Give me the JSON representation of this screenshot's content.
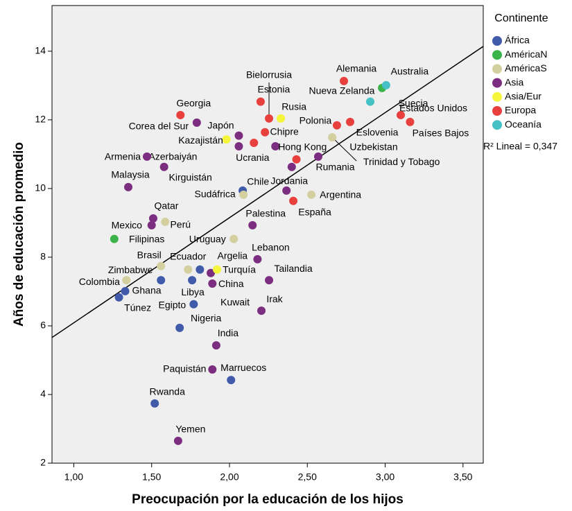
{
  "chart_data": {
    "type": "scatter",
    "xlabel": "Preocupación por la educación de los hijos",
    "ylabel": "Años de educación promedio",
    "xlim": [
      0.86,
      3.63
    ],
    "ylim": [
      2,
      15.33
    ],
    "xticks": [
      {
        "value": 1,
        "label": "1,00"
      },
      {
        "value": 1.5,
        "label": "1,50"
      },
      {
        "value": 2,
        "label": "2,00"
      },
      {
        "value": 2.5,
        "label": "2,50"
      },
      {
        "value": 3,
        "label": "3,00"
      },
      {
        "value": 3.5,
        "label": "3,50"
      }
    ],
    "yticks": [
      2,
      4,
      6,
      8,
      10,
      12,
      14
    ],
    "legend_title": "Continente",
    "legend": "right",
    "annotation": "R² Lineal = 0,347",
    "trendline": {
      "x": [
        0.86,
        3.63
      ],
      "y": [
        5.66,
        14.14
      ],
      "color": "#000000"
    },
    "series": [
      {
        "name": "África",
        "color": "#3f5ba9",
        "x": [
          2.085,
          1.81,
          1.76,
          1.33,
          1.29,
          1.77,
          1.56,
          1.68,
          2.01,
          1.52
        ],
        "values": [
          9.94,
          7.64,
          7.33,
          7.01,
          6.83,
          6.63,
          7.33,
          5.94,
          4.42,
          3.74
        ],
        "labels": [
          "Sudáfrica",
          "Argelia",
          "Libya",
          "Ghana",
          "Túnez",
          "Egipto",
          "Zimbabwe",
          "Nigeria",
          "Marruecos",
          "Rwanda"
        ]
      },
      {
        "name": "AméricaN",
        "color": "#3cb34a",
        "x": [
          1.26,
          2.98
        ],
        "values": [
          8.53,
          12.93
        ],
        "labels": [
          "Mexico",
          "Estados Unidos"
        ]
      },
      {
        "name": "AméricaS",
        "color": "#d3cf9e",
        "x": [
          2.09,
          2.526,
          1.587,
          2.028,
          1.734,
          1.56,
          1.338,
          2.66
        ],
        "values": [
          9.82,
          9.82,
          9.03,
          8.53,
          7.64,
          7.74,
          7.33,
          11.49
        ],
        "labels": [
          "Chile",
          "Argentina",
          "Perú",
          "Uruguay",
          "Ecuador",
          "Brasil",
          "Colombia",
          "Trinidad y Tobago"
        ]
      },
      {
        "name": "Asia",
        "color": "#7b2d7f",
        "x": [
          1.79,
          2.06,
          2.06,
          1.47,
          1.58,
          1.35,
          1.51,
          1.5,
          2.366,
          2.57,
          2.295,
          2.4,
          2.148,
          2.18,
          2.254,
          1.89,
          1.88,
          2.205,
          1.915,
          1.89,
          1.67
        ],
        "values": [
          11.92,
          11.54,
          11.23,
          10.93,
          10.63,
          10.04,
          9.13,
          8.93,
          9.94,
          10.93,
          11.23,
          10.63,
          8.93,
          7.94,
          7.33,
          7.23,
          7.54,
          6.44,
          5.43,
          4.73,
          2.65
        ],
        "labels": [
          "Corea del Sur",
          "Japón",
          "Azerbaiyán",
          "Armenia",
          "Kirguistán",
          "Malaysia",
          "Qatar",
          "Filipinas",
          "Jordania",
          "Uzbekistan",
          "Hong Kong",
          null,
          "Palestina",
          "Lebanon",
          "Tailandia",
          "China",
          "Kuwait",
          "Irak",
          "India",
          "Paquistán",
          "Yemen"
        ]
      },
      {
        "name": "Asia/Eur",
        "color": "#f5f53c",
        "x": [
          1.98,
          2.33,
          1.92
        ],
        "values": [
          11.43,
          12.04,
          7.64
        ],
        "labels": [
          "Kazajistán",
          "Rusia",
          "Turquía"
        ]
      },
      {
        "name": "Europa",
        "color": "#e8403d",
        "x": [
          1.685,
          2.2,
          2.254,
          2.228,
          2.157,
          2.43,
          2.69,
          2.775,
          2.735,
          3.1,
          3.16,
          2.41
        ],
        "values": [
          12.14,
          12.53,
          12.04,
          11.64,
          11.33,
          10.85,
          11.84,
          11.94,
          13.13,
          12.14,
          11.94,
          9.64
        ],
        "labels": [
          "Georgia",
          "Estonia",
          "Bielorrusia",
          "Chipre",
          "Ucrania",
          "Rumania",
          "Polonia",
          "Eslovenia",
          "Alemania",
          "Suecia",
          "Países Bajos",
          "España"
        ]
      },
      {
        "name": "Oceanía",
        "color": "#45c1c5",
        "x": [
          3.006,
          2.904
        ],
        "values": [
          13.01,
          12.53
        ],
        "labels": [
          "Australia",
          "Nueva Zelanda"
        ]
      }
    ]
  }
}
